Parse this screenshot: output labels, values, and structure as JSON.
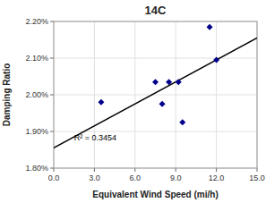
{
  "chart_data": {
    "type": "scatter",
    "title": "14C",
    "x_label": "Equivalent Wind Speed (mi/h)",
    "y_label": "Damping Ratio",
    "xlim": [
      0.0,
      15.0
    ],
    "ylim": [
      0.018,
      0.022
    ],
    "xticks": [
      {
        "value": 0.0,
        "label": "0.0"
      },
      {
        "value": 3.0,
        "label": "3.0"
      },
      {
        "value": 6.0,
        "label": "6.0"
      },
      {
        "value": 9.0,
        "label": "9.0"
      },
      {
        "value": 12.0,
        "label": "12.0"
      },
      {
        "value": 15.0,
        "label": "15.0"
      }
    ],
    "yticks": [
      {
        "value": 0.018,
        "label": "1.80%"
      },
      {
        "value": 0.019,
        "label": "1.90%"
      },
      {
        "value": 0.02,
        "label": "2.00%"
      },
      {
        "value": 0.021,
        "label": "2.10%"
      },
      {
        "value": 0.022,
        "label": "2.20%"
      }
    ],
    "grid": true,
    "series": [
      {
        "type": "line",
        "color": "#000000",
        "line_style": "solid",
        "x": [
          0.0,
          15.0
        ],
        "values": [
          0.01855,
          0.02155
        ]
      },
      {
        "type": "scatter",
        "color": "#00008B",
        "marker": "diamond",
        "x": [
          3.5,
          7.5,
          8.0,
          8.5,
          9.2,
          9.5,
          11.5,
          12.0
        ],
        "values": [
          0.0198,
          0.02035,
          0.01975,
          0.02035,
          0.02035,
          0.01925,
          0.02185,
          0.02095
        ]
      }
    ],
    "annotations": [
      {
        "text": "R² = 0.3454",
        "x": 1.5,
        "y": 0.01875
      }
    ]
  }
}
